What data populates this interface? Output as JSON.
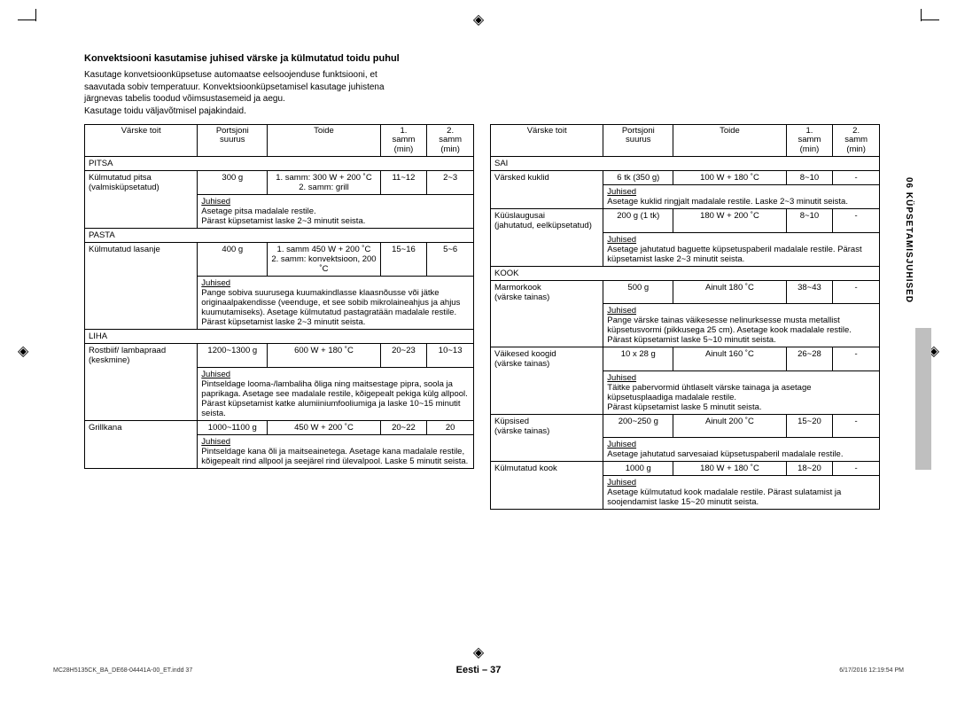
{
  "cropmarks": true,
  "registration_glyph": "◈",
  "heading": "Konvektsiooni kasutamise juhised värske ja külmutatud toidu puhul",
  "intro_lines": [
    "Kasutage konvetsioonküpsetuse automaatse eelsoojenduse funktsiooni, et",
    "saavutada sobiv temperatuur. Konvektsioonküpsetamisel kasutage juhistena",
    "järgnevas tabelis toodud võimsustasemeid ja aegu.",
    "Kasutage toidu väljavõtmisel pajakindaid."
  ],
  "headers": {
    "col1": "Värske toit",
    "col2": "Portsjoni suurus",
    "col3": "Toide",
    "col4": "1. samm (min)",
    "col5": "2. samm (min)"
  },
  "left_table": [
    {
      "type": "section",
      "label": "PITSA"
    },
    {
      "type": "row",
      "c1": "Külmutatud pitsa (valmisküpsetatud)",
      "c2": "300 g",
      "c3": "1. samm: 300 W + 200 ˚C\n2. samm: grill",
      "c4": "11~12",
      "c5": "2~3"
    },
    {
      "type": "inst",
      "title": "Juhised",
      "text": "Asetage pitsa madalale restile.\nPärast küpsetamist laske 2~3 minutit seista."
    },
    {
      "type": "section",
      "label": "PASTA"
    },
    {
      "type": "row",
      "c1": "Külmutatud lasanje",
      "c2": "400 g",
      "c3": "1. samm 450 W + 200 ˚C\n2. samm: konvektsioon, 200 ˚C",
      "c4": "15~16",
      "c5": "5~6"
    },
    {
      "type": "inst",
      "title": "Juhised",
      "text": "Pange sobiva suurusega kuumakindlasse klaasnõusse või jätke originaalpakendisse (veenduge, et see sobib mikrolaineahjus ja ahjus kuumutamiseks). Asetage külmutatud pastagratään madalale restile. Pärast küpsetamist laske 2~3 minutit seista."
    },
    {
      "type": "section",
      "label": "LIHA"
    },
    {
      "type": "row",
      "c1": "Rostbiif/ lambapraad (keskmine)",
      "c2": "1200~1300 g",
      "c3": "600 W + 180 ˚C",
      "c4": "20~23",
      "c5": "10~13"
    },
    {
      "type": "inst",
      "title": "Juhised",
      "text": "Pintseldage looma-/lambaliha õliga ning maitsestage pipra, soola ja paprikaga. Asetage see madalale restile, kõigepealt pekiga külg allpool. Pärast küpsetamist katke alumiiniumfooliumiga ja laske 10~15 minutit seista."
    },
    {
      "type": "row",
      "c1": "Grillkana",
      "c2": "1000~1100 g",
      "c3": "450 W + 200 ˚C",
      "c4": "20~22",
      "c5": "20"
    },
    {
      "type": "inst",
      "title": "Juhised",
      "text": "Pintseldage kana õli ja maitseainetega. Asetage kana madalale restile, kõigepealt rind allpool ja seejärel rind ülevalpool. Laske 5 minutit seista."
    }
  ],
  "right_table": [
    {
      "type": "section",
      "label": "SAI"
    },
    {
      "type": "row",
      "c1": "Värsked kuklid",
      "c2": "6 tk (350 g)",
      "c3": "100 W + 180 ˚C",
      "c4": "8~10",
      "c5": "-"
    },
    {
      "type": "inst",
      "title": "Juhised",
      "text": "Asetage kuklid ringjalt madalale restile. Laske 2~3 minutit seista."
    },
    {
      "type": "row",
      "c1": "Küüslaugusai (jahutatud, eelküpsetatud)",
      "c2": "200 g (1 tk)",
      "c3": "180 W + 200 ˚C",
      "c4": "8~10",
      "c5": "-"
    },
    {
      "type": "inst",
      "title": "Juhised",
      "text": "Asetage jahutatud baguette küpsetuspaberil madalale restile. Pärast küpsetamist laske 2~3 minutit seista."
    },
    {
      "type": "section",
      "label": "KOOK"
    },
    {
      "type": "row",
      "c1": "Marmorkook (värske tainas)",
      "c2": "500 g",
      "c3": "Ainult 180 ˚C",
      "c4": "38~43",
      "c5": "-"
    },
    {
      "type": "inst",
      "title": "Juhised",
      "text": "Pange värske tainas väikesesse nelinurksesse musta metallist küpsetusvormi (pikkusega 25 cm). Asetage kook madalale restile. Pärast küpsetamist laske 5~10 minutit seista."
    },
    {
      "type": "row",
      "c1": "Väikesed koogid (värske tainas)",
      "c2": "10 x 28 g",
      "c3": "Ainult 160 ˚C",
      "c4": "26~28",
      "c5": "-"
    },
    {
      "type": "inst",
      "title": "Juhised",
      "text": "Täitke pabervormid ühtlaselt värske tainaga ja asetage küpsetusplaadiga madalale restile.\nPärast küpsetamist laske 5 minutit seista."
    },
    {
      "type": "row",
      "c1": "Küpsised (värske tainas)",
      "c2": "200~250 g",
      "c3": "Ainult 200 ˚C",
      "c4": "15~20",
      "c5": "-"
    },
    {
      "type": "inst",
      "title": "Juhised",
      "text": "Asetage jahutatud sarvesaiad küpsetuspaberil madalale restile."
    },
    {
      "type": "row",
      "c1": "Külmutatud kook",
      "c2": "1000 g",
      "c3": "180 W + 180 ˚C",
      "c4": "18~20",
      "c5": "-"
    },
    {
      "type": "inst",
      "title": "Juhised",
      "text": "Asetage külmutatud kook madalale restile. Pärast sulatamist ja soojendamist laske 15~20 minutit seista."
    }
  ],
  "side_tab": "06 KÜPSETAMISJUHISED",
  "page_center": "Eesti – 37",
  "footer_left": "MC28H5135CK_BA_DE68-04441A-00_ET.indd   37",
  "footer_right": "6/17/2016   12:19:54 PM",
  "colwidths": {
    "c1": "29%",
    "c2": "18%",
    "c3": "29%",
    "c4": "12%",
    "c5": "12%"
  }
}
